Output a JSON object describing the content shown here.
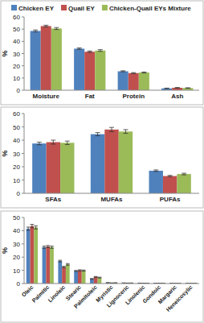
{
  "chart_data": [
    {
      "type": "bar",
      "y_label": "%",
      "categories": [
        "Moisture",
        "Fat",
        "Protein",
        "Ash"
      ],
      "ylim": [
        0,
        60
      ],
      "yticks": [
        0,
        10,
        20,
        30,
        40,
        50,
        60
      ],
      "grid": false,
      "legend": "top",
      "series": [
        {
          "name": "Chicken EY",
          "color": "#4f81bd",
          "values": [
            48.5,
            34,
            15.5,
            1.5
          ],
          "errors": [
            0.8,
            0.6,
            0.4,
            0.2
          ]
        },
        {
          "name": "Quail EY",
          "color": "#c0504d",
          "values": [
            52.5,
            31.5,
            14,
            2
          ],
          "errors": [
            0.7,
            0.6,
            0.4,
            0.2
          ]
        },
        {
          "name": "Chicken-Quail EYs Mixture",
          "color": "#9bbb59",
          "values": [
            50.5,
            32.5,
            14.5,
            1.8
          ],
          "errors": [
            0.8,
            0.7,
            0.4,
            0.2
          ]
        }
      ]
    },
    {
      "type": "bar",
      "y_label": "%",
      "categories": [
        "SFAs",
        "MUFAs",
        "PUFAs"
      ],
      "ylim": [
        0,
        60
      ],
      "yticks": [
        0,
        10,
        20,
        30,
        40,
        50,
        60
      ],
      "grid": false,
      "series": [
        {
          "color": "#4f81bd",
          "values": [
            37.5,
            44.5,
            17
          ],
          "errors": [
            1.0,
            1.2,
            0.6
          ]
        },
        {
          "color": "#c0504d",
          "values": [
            38.5,
            48,
            13
          ],
          "errors": [
            1.5,
            1.6,
            0.5
          ]
        },
        {
          "color": "#9bbb59",
          "values": [
            38,
            46.5,
            14.5
          ],
          "errors": [
            1.3,
            1.4,
            0.6
          ]
        }
      ]
    },
    {
      "type": "bar",
      "y_label": "%",
      "categories": [
        "Oleic",
        "Palmitic",
        "Linoleic",
        "Stearic",
        "Palmitoleic",
        "Myristic",
        "Lignoceric",
        "Linolenic",
        "Gondoic",
        "Margaric",
        "Heneicosylic"
      ],
      "ylim": [
        0,
        50
      ],
      "yticks": [
        0,
        10,
        20,
        30,
        40,
        50
      ],
      "grid": false,
      "series": [
        {
          "color": "#4f81bd",
          "values": [
            41.5,
            27.5,
            17,
            9.5,
            3.5,
            0.6,
            0.4,
            0.3,
            0.2,
            0.15,
            0.1
          ],
          "errors": [
            1.2,
            0.8,
            0.6,
            0.4,
            0.3,
            0.1,
            0.1,
            0.05,
            0.05,
            0.05,
            0.03
          ]
        },
        {
          "color": "#c0504d",
          "values": [
            43.5,
            28,
            12.5,
            10,
            5,
            0.4,
            0.3,
            0.2,
            0.2,
            0.1,
            0.08
          ],
          "errors": [
            1.3,
            0.8,
            0.5,
            0.4,
            0.3,
            0.1,
            0.1,
            0.05,
            0.05,
            0.03,
            0.03
          ]
        },
        {
          "color": "#9bbb59",
          "values": [
            42.5,
            27.5,
            14.5,
            9.8,
            4.5,
            0.5,
            0.35,
            0.25,
            0.2,
            0.12,
            0.09
          ],
          "errors": [
            1.2,
            0.8,
            0.6,
            0.4,
            0.3,
            0.1,
            0.1,
            0.05,
            0.05,
            0.03,
            0.03
          ]
        }
      ]
    }
  ]
}
